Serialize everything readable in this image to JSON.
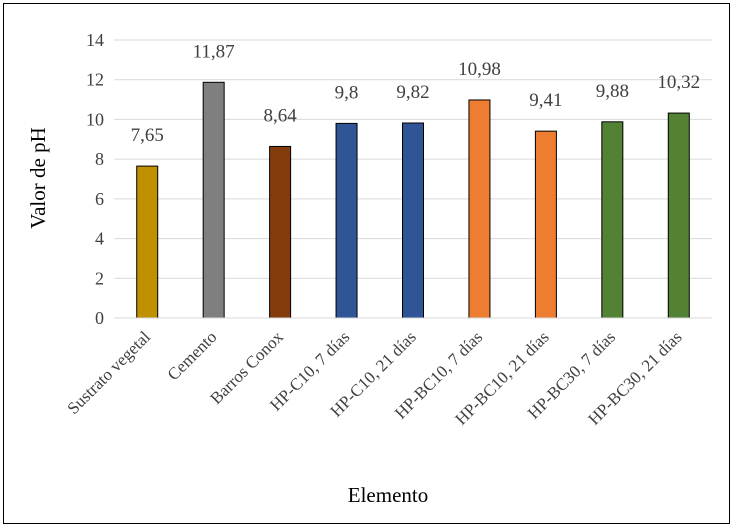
{
  "chart_data": {
    "type": "bar",
    "categories": [
      "Sustrato vegetal",
      "Cemento",
      "Barros Conox",
      "HP-C10, 7 días",
      "HP-C10, 21 días",
      "HP-BC10, 7 días",
      "HP-BC10, 21 días",
      "HP-BC30, 7 días",
      "HP-BC30, 21 días"
    ],
    "values": [
      7.65,
      11.87,
      8.64,
      9.8,
      9.82,
      10.98,
      9.41,
      9.88,
      10.32
    ],
    "value_labels": [
      "7,65",
      "11,87",
      "8,64",
      "9,8",
      "9,82",
      "10,98",
      "9,41",
      "9,88",
      "10,32"
    ],
    "colors": [
      "#bf9000",
      "#7f7f7f",
      "#843c0c",
      "#2f5597",
      "#2f5597",
      "#ed7d31",
      "#ed7d31",
      "#548235",
      "#548235"
    ],
    "xlabel": "Elemento",
    "ylabel": "Valor de pH",
    "ylim": [
      0,
      14
    ],
    "yticks": [
      "0",
      "2",
      "4",
      "6",
      "8",
      "10",
      "12",
      "14"
    ],
    "grid": true,
    "legend": "none"
  }
}
